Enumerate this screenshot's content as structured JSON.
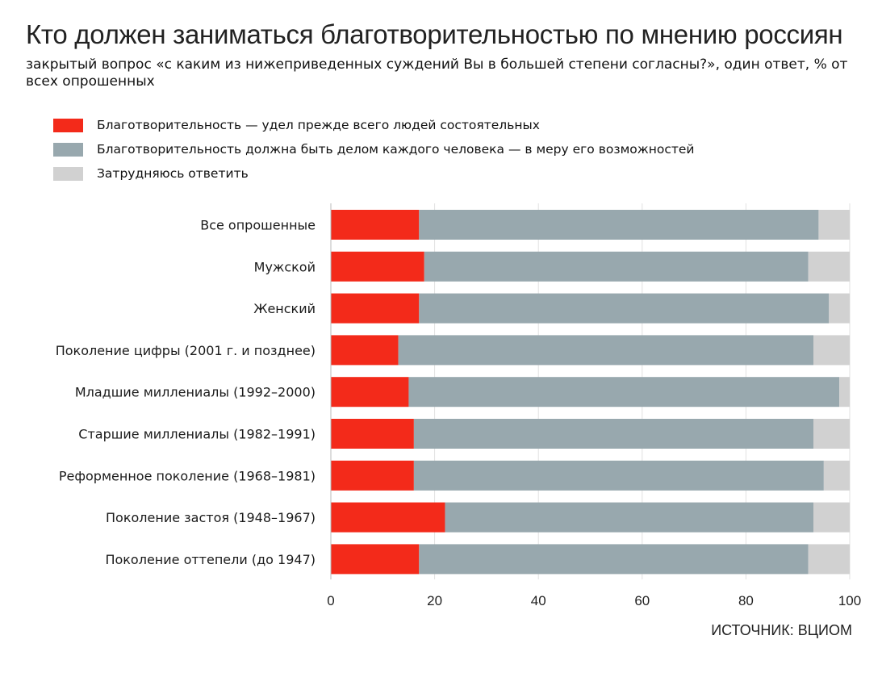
{
  "title": "Кто должен заниматься благотворительностью по мнению россиян",
  "subtitle": "закрытый вопрос «с каким из нижеприведенных суждений Вы в большей степени согласны?», один ответ, % от всех опрошенных",
  "source": "ИСТОЧНИК: ВЦИОМ",
  "legend": [
    {
      "label": "Благотворительность — удел прежде всего людей состоятельных",
      "color": "#f32a1a",
      "icon": "red-swatch"
    },
    {
      "label": "Благотворительность должна быть делом каждого человека — в меру его возможностей",
      "color": "#98a8ae",
      "icon": "gray-swatch"
    },
    {
      "label": "Затрудняюсь ответить",
      "color": "#d1d1d1",
      "icon": "light-gray-swatch"
    }
  ],
  "chart_data": {
    "type": "bar",
    "orientation": "horizontal",
    "stacked": true,
    "title": "Кто должен заниматься благотворительностью по мнению россиян",
    "xlabel": "",
    "ylabel": "",
    "xlim": [
      0,
      100
    ],
    "xticks": [
      0,
      20,
      40,
      60,
      80,
      100
    ],
    "grid": true,
    "legend_position": "top-left",
    "categories": [
      "Все опрошенные",
      "Мужской",
      "Женский",
      "Поколение цифры (2001 г. и позднее)",
      "Младшие миллениалы (1992–2000)",
      "Старшие миллениалы (1982–1991)",
      "Реформенное поколение (1968–1981)",
      "Поколение застоя (1948–1967)",
      "Поколение оттепели (до 1947)"
    ],
    "series": [
      {
        "name": "Благотворительность — удел прежде всего людей состоятельных",
        "color": "#f32a1a",
        "values": [
          17,
          18,
          17,
          13,
          15,
          16,
          16,
          22,
          17
        ]
      },
      {
        "name": "Благотворительность должна быть делом каждого человека — в меру его возможностей",
        "color": "#98a8ae",
        "values": [
          77,
          74,
          79,
          80,
          83,
          77,
          79,
          71,
          75
        ]
      },
      {
        "name": "Затрудняюсь ответить",
        "color": "#d1d1d1",
        "values": [
          6,
          8,
          4,
          7,
          2,
          7,
          5,
          7,
          8
        ]
      }
    ]
  }
}
